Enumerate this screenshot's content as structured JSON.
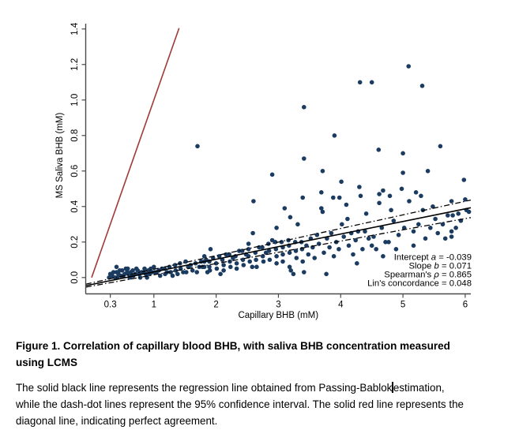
{
  "figure": {
    "caption_title_lines": [
      "Figure 1. Correlation of capillary blood BHB, with saliva BHB concentration measured",
      "using LCMS"
    ],
    "caption_body": {
      "line1_before_cursor": "The solid black line represents the regression line obtained from Passing-Bablok",
      "line1_after_cursor": "estimation,",
      "line2": "while the dash-dot lines represent the 95% confidence interval. The solid red line represents the",
      "line3": "diagonal line, indicating perfect agreement."
    }
  },
  "chart_data": {
    "type": "scatter",
    "title": "",
    "xlabel": "Capillary BHB (mM)",
    "ylabel": "MS Saliva BHB (mM)",
    "xlim": [
      -0.095,
      6.09
    ],
    "ylim": [
      -0.092,
      1.43
    ],
    "xticks": {
      "values": [
        0.3,
        1,
        2,
        3,
        4,
        5,
        6
      ],
      "labels": [
        "0.3",
        "1",
        "2",
        "3",
        "4",
        "5",
        "6"
      ]
    },
    "yticks": {
      "values": [
        0,
        0.2,
        0.4,
        0.6,
        0.8,
        1.0,
        1.2,
        1.4
      ],
      "labels": [
        "0.0",
        "0.2",
        "0.4",
        "0.6",
        "0.8",
        "1.0",
        "1.2",
        "1.4"
      ]
    },
    "grid": false,
    "legend": "none",
    "axis_color": "#4a4a4a",
    "point_color": "#1B3C60",
    "point_radius": 2.8,
    "lines": [
      {
        "name": "identity-line",
        "color": "#9F3A38",
        "style": "solid",
        "width": 1.6,
        "x1": 0,
        "y1": 0,
        "x2": 1.405,
        "y2": 1.405
      },
      {
        "name": "regression-line",
        "color": "#000000",
        "style": "solid",
        "width": 1.6,
        "intercept": -0.039,
        "slope": 0.071,
        "xrange": [
          -0.09,
          6.09
        ]
      },
      {
        "name": "ci-upper-line",
        "color": "#000000",
        "style": "dashdot",
        "width": 1.3,
        "intercept": -0.03,
        "slope": 0.0766,
        "xrange": [
          -0.09,
          6.09
        ]
      },
      {
        "name": "ci-lower-line",
        "color": "#000000",
        "style": "dashdot",
        "width": 1.3,
        "intercept": -0.048,
        "slope": 0.0633,
        "xrange": [
          -0.09,
          6.09
        ]
      }
    ],
    "stats": [
      {
        "label": "Intercept",
        "symbol": "a",
        "value": "-0.039"
      },
      {
        "label": "Slope",
        "symbol": "b",
        "value": "0.071"
      },
      {
        "label": "Spearman's",
        "symbol": "ρ",
        "value": "0.865"
      },
      {
        "label": "Lin's concordance",
        "symbol": "",
        "value": "0.048"
      }
    ],
    "points": [
      [
        0.28,
        0.0
      ],
      [
        0.3,
        0.02
      ],
      [
        0.33,
        0.01
      ],
      [
        0.35,
        0.03
      ],
      [
        0.38,
        0.0
      ],
      [
        0.4,
        0.06
      ],
      [
        0.4,
        0.03
      ],
      [
        0.41,
        0.0
      ],
      [
        0.43,
        0.02
      ],
      [
        0.45,
        0.04
      ],
      [
        0.47,
        0.01
      ],
      [
        0.49,
        0.04
      ],
      [
        0.51,
        0.01
      ],
      [
        0.53,
        0.02
      ],
      [
        0.55,
        0.05
      ],
      [
        0.57,
        0.03
      ],
      [
        0.58,
        0.05
      ],
      [
        0.59,
        0.02
      ],
      [
        0.61,
        0.0
      ],
      [
        0.63,
        0.03
      ],
      [
        0.65,
        0.01
      ],
      [
        0.66,
        0.04
      ],
      [
        0.67,
        0.01
      ],
      [
        0.7,
        0.02
      ],
      [
        0.72,
        0.05
      ],
      [
        0.74,
        0.04
      ],
      [
        0.76,
        0.02
      ],
      [
        0.78,
        0.0
      ],
      [
        0.8,
        0.03
      ],
      [
        0.83,
        0.03
      ],
      [
        0.85,
        0.05
      ],
      [
        0.87,
        0.02
      ],
      [
        0.89,
        0.0
      ],
      [
        0.91,
        0.04
      ],
      [
        0.93,
        0.02
      ],
      [
        0.95,
        0.05
      ],
      [
        0.97,
        0.03
      ],
      [
        1.0,
        0.06
      ],
      [
        1.01,
        0.03
      ],
      [
        1.04,
        0.03
      ],
      [
        1.08,
        0.04
      ],
      [
        1.1,
        0.01
      ],
      [
        1.13,
        0.05
      ],
      [
        1.17,
        0.05
      ],
      [
        1.18,
        0.02
      ],
      [
        1.21,
        0.03
      ],
      [
        1.25,
        0.06
      ],
      [
        1.27,
        0.03
      ],
      [
        1.3,
        0.01
      ],
      [
        1.34,
        0.07
      ],
      [
        1.35,
        0.04
      ],
      [
        1.38,
        0.02
      ],
      [
        1.42,
        0.08
      ],
      [
        1.43,
        0.05
      ],
      [
        1.47,
        0.03
      ],
      [
        1.51,
        0.09
      ],
      [
        1.52,
        0.03
      ],
      [
        1.55,
        0.06
      ],
      [
        1.59,
        0.07
      ],
      [
        1.62,
        0.04
      ],
      [
        1.67,
        0.08
      ],
      [
        1.69,
        0.03
      ],
      [
        1.7,
        0.74
      ],
      [
        1.73,
        0.06
      ],
      [
        1.76,
        0.09
      ],
      [
        1.78,
        0.06
      ],
      [
        1.81,
        0.12
      ],
      [
        1.81,
        0.09
      ],
      [
        1.81,
        0.06
      ],
      [
        1.84,
        0.1
      ],
      [
        1.86,
        0.03
      ],
      [
        1.89,
        0.09
      ],
      [
        1.89,
        0.06
      ],
      [
        1.9,
        0.04
      ],
      [
        1.91,
        0.16
      ],
      [
        1.95,
        0.11
      ],
      [
        2.0,
        0.08
      ],
      [
        2.01,
        0.05
      ],
      [
        2.05,
        0.12
      ],
      [
        2.07,
        0.02
      ],
      [
        2.1,
        0.1
      ],
      [
        2.12,
        0.07
      ],
      [
        2.12,
        0.04
      ],
      [
        2.16,
        0.13
      ],
      [
        2.21,
        0.13
      ],
      [
        2.22,
        0.09
      ],
      [
        2.23,
        0.06
      ],
      [
        2.27,
        0.11
      ],
      [
        2.31,
        0.12
      ],
      [
        2.33,
        0.08
      ],
      [
        2.33,
        0.05
      ],
      [
        2.37,
        0.15
      ],
      [
        2.42,
        0.15
      ],
      [
        2.43,
        0.1
      ],
      [
        2.44,
        0.07
      ],
      [
        2.48,
        0.13
      ],
      [
        2.52,
        0.19
      ],
      [
        2.52,
        0.16
      ],
      [
        2.52,
        0.12
      ],
      [
        2.54,
        0.09
      ],
      [
        2.58,
        0.06
      ],
      [
        2.59,
        0.25
      ],
      [
        2.6,
        0.43
      ],
      [
        2.63,
        0.14
      ],
      [
        2.64,
        0.1
      ],
      [
        2.65,
        0.06
      ],
      [
        2.69,
        0.17
      ],
      [
        2.74,
        0.17
      ],
      [
        2.75,
        0.12
      ],
      [
        2.76,
        0.09
      ],
      [
        2.8,
        0.14
      ],
      [
        2.84,
        0.19
      ],
      [
        2.85,
        0.15
      ],
      [
        2.86,
        0.1
      ],
      [
        2.9,
        0.58
      ],
      [
        2.9,
        0.21
      ],
      [
        2.95,
        0.2
      ],
      [
        2.96,
        0.16
      ],
      [
        2.97,
        0.12
      ],
      [
        2.97,
        0.08
      ],
      [
        2.97,
        0.28
      ],
      [
        3.05,
        0.2
      ],
      [
        3.07,
        0.17
      ],
      [
        3.07,
        0.13
      ],
      [
        3.07,
        0.09
      ],
      [
        3.1,
        0.39
      ],
      [
        3.16,
        0.21
      ],
      [
        3.17,
        0.18
      ],
      [
        3.18,
        0.14
      ],
      [
        3.18,
        0.06
      ],
      [
        3.19,
        0.34
      ],
      [
        3.2,
        0.04
      ],
      [
        3.24,
        0.02
      ],
      [
        3.27,
        0.2
      ],
      [
        3.28,
        0.15
      ],
      [
        3.29,
        0.11
      ],
      [
        3.31,
        0.3
      ],
      [
        3.37,
        0.2
      ],
      [
        3.38,
        0.16
      ],
      [
        3.39,
        0.09
      ],
      [
        3.39,
        0.45
      ],
      [
        3.41,
        0.96
      ],
      [
        3.41,
        0.67
      ],
      [
        3.41,
        0.03
      ],
      [
        3.45,
        0.18
      ],
      [
        3.48,
        0.13
      ],
      [
        3.52,
        0.22
      ],
      [
        3.55,
        0.17
      ],
      [
        3.58,
        0.11
      ],
      [
        3.62,
        0.24
      ],
      [
        3.65,
        0.19
      ],
      [
        3.69,
        0.48
      ],
      [
        3.69,
        0.39
      ],
      [
        3.71,
        0.6
      ],
      [
        3.71,
        0.37
      ],
      [
        3.73,
        0.14
      ],
      [
        3.77,
        0.02
      ],
      [
        3.78,
        0.22
      ],
      [
        3.82,
        0.17
      ],
      [
        3.85,
        0.25
      ],
      [
        3.88,
        0.45
      ],
      [
        3.89,
        0.12
      ],
      [
        3.9,
        0.8
      ],
      [
        3.93,
        0.2
      ],
      [
        3.97,
        0.16
      ],
      [
        3.98,
        0.45
      ],
      [
        4.01,
        0.54
      ],
      [
        4.02,
        0.3
      ],
      [
        4.05,
        0.23
      ],
      [
        4.09,
        0.41
      ],
      [
        4.11,
        0.33
      ],
      [
        4.13,
        0.18
      ],
      [
        4.17,
        0.25
      ],
      [
        4.2,
        0.13
      ],
      [
        4.24,
        0.21
      ],
      [
        4.26,
        0.08
      ],
      [
        4.28,
        0.26
      ],
      [
        4.3,
        0.51
      ],
      [
        4.31,
        1.1
      ],
      [
        4.32,
        0.46
      ],
      [
        4.35,
        0.16
      ],
      [
        4.39,
        0.26
      ],
      [
        4.41,
        0.36
      ],
      [
        4.45,
        0.22
      ],
      [
        4.5,
        1.1
      ],
      [
        4.5,
        0.18
      ],
      [
        4.53,
        0.23
      ],
      [
        4.57,
        0.16
      ],
      [
        4.61,
        0.72
      ],
      [
        4.62,
        0.47
      ],
      [
        4.62,
        0.42
      ],
      [
        4.66,
        0.28
      ],
      [
        4.68,
        0.49
      ],
      [
        4.68,
        0.12
      ],
      [
        4.72,
        0.2
      ],
      [
        4.77,
        0.2
      ],
      [
        4.79,
        0.46
      ],
      [
        4.81,
        0.38
      ],
      [
        4.85,
        0.32
      ],
      [
        4.89,
        0.16
      ],
      [
        4.93,
        0.24
      ],
      [
        4.98,
        0.5
      ],
      [
        5.0,
        0.7
      ],
      [
        5.0,
        0.59
      ],
      [
        5.02,
        0.28
      ],
      [
        5.09,
        1.19
      ],
      [
        5.1,
        0.43
      ],
      [
        5.17,
        0.26
      ],
      [
        5.17,
        0.18
      ],
      [
        5.21,
        0.48
      ],
      [
        5.25,
        0.3
      ],
      [
        5.29,
        0.46
      ],
      [
        5.31,
        1.08
      ],
      [
        5.32,
        0.38
      ],
      [
        5.36,
        0.22
      ],
      [
        5.4,
        0.6
      ],
      [
        5.44,
        0.28
      ],
      [
        5.48,
        0.4
      ],
      [
        5.52,
        0.33
      ],
      [
        5.56,
        0.25
      ],
      [
        5.6,
        0.74
      ],
      [
        5.64,
        0.3
      ],
      [
        5.68,
        0.22
      ],
      [
        5.72,
        0.35
      ],
      [
        5.78,
        0.43
      ],
      [
        5.78,
        0.26
      ],
      [
        5.78,
        0.23
      ],
      [
        5.8,
        0.35
      ],
      [
        5.85,
        0.28
      ],
      [
        5.89,
        0.36
      ],
      [
        5.93,
        0.32
      ],
      [
        5.98,
        0.55
      ],
      [
        6.0,
        0.44
      ],
      [
        6.02,
        0.38
      ],
      [
        6.06,
        0.37
      ]
    ]
  }
}
